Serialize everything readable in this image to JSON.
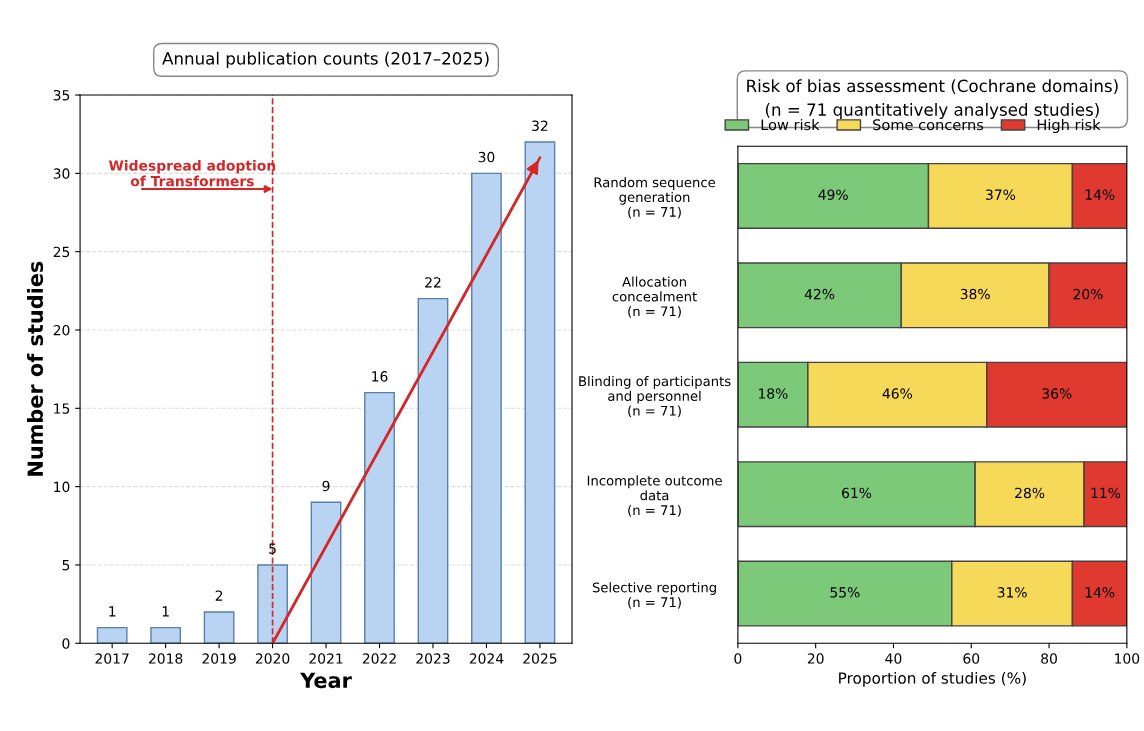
{
  "chart_data": [
    {
      "type": "bar",
      "title": "Annual publication counts (2017–2025)",
      "xlabel": "Year",
      "ylabel": "Number of studies",
      "categories": [
        "2017",
        "2018",
        "2019",
        "2020",
        "2021",
        "2022",
        "2023",
        "2024",
        "2025"
      ],
      "series": [
        {
          "type": "bar",
          "color": "#b8d4f2",
          "values": [
            1,
            1,
            2,
            5,
            9,
            16,
            22,
            30,
            32
          ],
          "value_labels": [
            "1",
            "1",
            "2",
            "5",
            "9",
            "16",
            "22",
            "30",
            "32"
          ]
        },
        {
          "type": "line",
          "color": "#d62728",
          "values": [
            null,
            null,
            null,
            0,
            null,
            null,
            null,
            null,
            31
          ]
        }
      ],
      "ylim": [
        0,
        35
      ],
      "yticks": [
        0,
        5,
        10,
        15,
        20,
        25,
        30,
        35
      ],
      "grid": "y",
      "ref_lines": [
        {
          "axis": "x",
          "value": "2020",
          "color": "#d62728",
          "line_style": "dashed"
        }
      ],
      "annotations": [
        {
          "text": "Widespread adoption\nof Transformers",
          "x": "2020",
          "y": 29
        }
      ]
    },
    {
      "type": "bar",
      "orientation": "horizontal",
      "stacked": true,
      "title": "Risk of bias assessment (Cochrane domains)",
      "subtitle": "(n = 71 quantitatively analysed studies)",
      "xlabel": "Proportion of studies (%)",
      "categories": [
        "Random sequence\ngeneration\n(n = 71)",
        "Allocation\nconcealment\n(n = 71)",
        "Blinding of participants\nand personnel\n(n = 71)",
        "Incomplete outcome\ndata\n(n = 71)",
        "Selective reporting\n(n = 71)"
      ],
      "series": [
        {
          "name": "Low risk",
          "color": "#7dc97a",
          "values": [
            49,
            42,
            18,
            61,
            55
          ],
          "value_labels": [
            "49%",
            "42%",
            "18%",
            "61%",
            "55%"
          ]
        },
        {
          "name": "Some concerns",
          "color": "#f7d95a",
          "values": [
            37,
            38,
            46,
            28,
            31
          ],
          "value_labels": [
            "37%",
            "38%",
            "46%",
            "28%",
            "31%"
          ]
        },
        {
          "name": "High risk",
          "color": "#e0392f",
          "values": [
            14,
            20,
            36,
            11,
            14
          ],
          "value_labels": [
            "14%",
            "20%",
            "36%",
            "11%",
            "14%"
          ]
        }
      ],
      "xlim": [
        0,
        100
      ],
      "xticks": [
        0,
        20,
        40,
        60,
        80,
        100
      ],
      "legend": "top"
    }
  ]
}
